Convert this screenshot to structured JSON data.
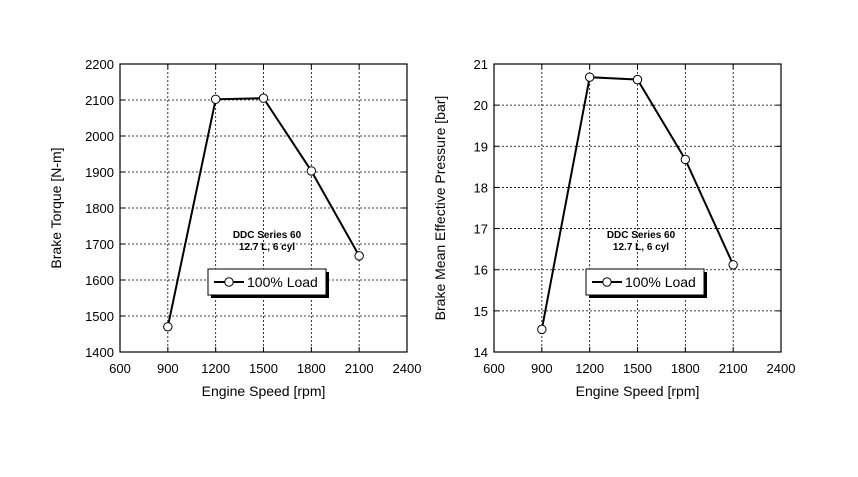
{
  "chart_data": [
    {
      "type": "line",
      "annotation": [
        "DDC Series 60",
        "12.7 L, 6 cyl"
      ],
      "xlabel": "Engine Speed [rpm]",
      "ylabel": "Brake Torque [N-m]",
      "xlim": [
        600,
        2400
      ],
      "ylim": [
        1400,
        2200
      ],
      "xticks": [
        600,
        900,
        1200,
        1500,
        1800,
        2100,
        2400
      ],
      "yticks": [
        1400,
        1500,
        1600,
        1700,
        1800,
        1900,
        2000,
        2100,
        2200
      ],
      "grid": true,
      "legend_position": "center-left",
      "series": [
        {
          "name": "100% Load",
          "x": [
            900,
            1200,
            1500,
            1800,
            2100
          ],
          "y": [
            1470,
            2102,
            2105,
            1903,
            1667
          ]
        }
      ]
    },
    {
      "type": "line",
      "annotation": [
        "DDC Series 60",
        "12.7 L, 6 cyl"
      ],
      "xlabel": "Engine Speed [rpm]",
      "ylabel": "Brake Mean Effective Pressure [bar]",
      "xlim": [
        600,
        2400
      ],
      "ylim": [
        14,
        21
      ],
      "xticks": [
        600,
        900,
        1200,
        1500,
        1800,
        2100,
        2400
      ],
      "yticks": [
        14,
        15,
        16,
        17,
        18,
        19,
        20,
        21
      ],
      "grid": true,
      "legend_position": "center",
      "series": [
        {
          "name": "100% Load",
          "x": [
            900,
            1200,
            1500,
            1800,
            2100
          ],
          "y": [
            14.55,
            20.68,
            20.62,
            18.68,
            16.12
          ]
        }
      ]
    }
  ]
}
